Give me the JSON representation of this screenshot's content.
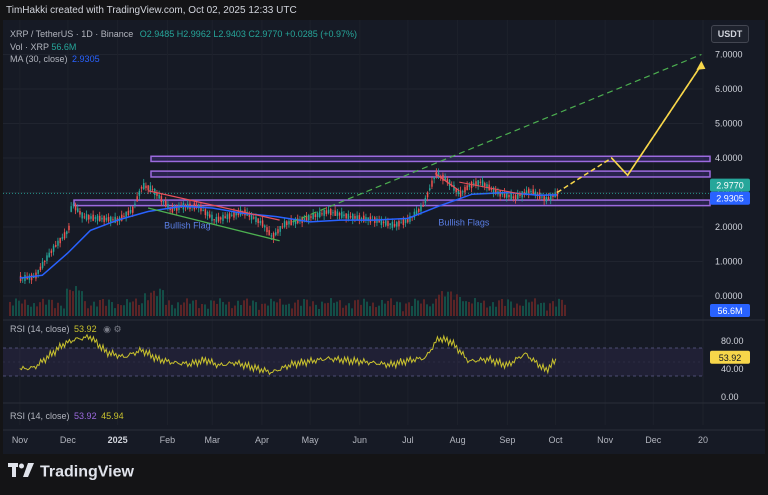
{
  "header": {
    "text": "TimHakki created with TradingView.com, Oct 02, 2025 12:33 UTC"
  },
  "legend": {
    "symbol": "XRP / TetherUS · 1D · Binance",
    "open": "O2.9485",
    "high": "H2.9962",
    "low": "L2.9403",
    "close": "C2.9770",
    "change": "+0.0285 (+0.97%)",
    "vol_label": "Vol · XRP",
    "vol_value": "56.6M",
    "ma_label": "MA (30, close)",
    "ma_value": "2.9305"
  },
  "currency_button": "USDT",
  "rsi_legend_top": {
    "label": "RSI (14, close)",
    "value": "53.92"
  },
  "rsi_legend_bottom": {
    "label": "RSI (14, close)",
    "value1": "53.92",
    "value2": "45.94"
  },
  "badges": {
    "price": "2.9770",
    "ma": "2.9305",
    "volume": "56.6M",
    "rsi": "53.92"
  },
  "annotations": {
    "bullish_flag": "Bullish Flag",
    "bullish_flags": "Bullish Flags"
  },
  "footer": {
    "brand": "TradingView"
  },
  "colors": {
    "background": "#161a25",
    "up": "#26a69a",
    "down": "#ef5350",
    "ma": "#2962ff",
    "rsi": "#c9c22e",
    "rsi_band": "#7e57c2",
    "zone": "#9c6ade",
    "projection": "#f7d64a",
    "trend": "#4caf50"
  },
  "chart_data": [
    {
      "type": "line",
      "title": "XRP / TetherUS · 1D · Binance",
      "x_tick_labels": [
        "Nov",
        "Dec",
        "2025",
        "Feb",
        "Mar",
        "Apr",
        "May",
        "Jun",
        "Jul",
        "Aug",
        "Sep",
        "Oct",
        "Nov",
        "Dec",
        "20"
      ],
      "y_tick_labels": [
        "7.0000",
        "6.0000",
        "5.0000",
        "4.0000",
        "3.0000",
        "2.0000",
        "1.0000",
        "0.0000"
      ],
      "ylim": [
        -0.3,
        7.2
      ],
      "series": [
        {
          "name": "XRP / TetherUS",
          "x": [
            "2024-11-01",
            "2024-11-10",
            "2024-11-16",
            "2024-11-22",
            "2024-12-01",
            "2024-12-03",
            "2024-12-10",
            "2024-12-20",
            "2025-01-01",
            "2025-01-10",
            "2025-01-16",
            "2025-01-22",
            "2025-02-03",
            "2025-02-10",
            "2025-02-20",
            "2025-03-02",
            "2025-03-10",
            "2025-03-20",
            "2025-04-01",
            "2025-04-07",
            "2025-04-15",
            "2025-04-25",
            "2025-05-12",
            "2025-05-25",
            "2025-06-10",
            "2025-06-22",
            "2025-07-01",
            "2025-07-10",
            "2025-07-18",
            "2025-07-25",
            "2025-08-02",
            "2025-08-08",
            "2025-08-15",
            "2025-08-25",
            "2025-09-05",
            "2025-09-15",
            "2025-09-25",
            "2025-10-02"
          ],
          "values": [
            0.51,
            0.55,
            1.0,
            1.4,
            1.9,
            2.7,
            2.3,
            2.25,
            2.2,
            2.5,
            3.2,
            3.1,
            2.5,
            2.6,
            2.6,
            2.2,
            2.3,
            2.45,
            2.1,
            1.7,
            2.1,
            2.2,
            2.45,
            2.3,
            2.2,
            2.05,
            2.2,
            2.6,
            3.55,
            3.35,
            2.95,
            3.2,
            3.3,
            3.0,
            2.85,
            3.05,
            2.8,
            2.97
          ]
        },
        {
          "name": "MA (30, close)",
          "x": [
            "2024-11-01",
            "2024-11-15",
            "2024-12-01",
            "2024-12-15",
            "2025-01-01",
            "2025-01-20",
            "2025-02-10",
            "2025-03-01",
            "2025-03-20",
            "2025-04-10",
            "2025-05-01",
            "2025-05-20",
            "2025-06-10",
            "2025-07-01",
            "2025-07-20",
            "2025-08-10",
            "2025-09-01",
            "2025-09-20",
            "2025-10-02"
          ],
          "values": [
            0.52,
            0.6,
            1.25,
            1.9,
            2.2,
            2.45,
            2.6,
            2.55,
            2.4,
            2.3,
            2.15,
            2.2,
            2.2,
            2.25,
            2.6,
            2.95,
            3.0,
            2.92,
            2.93
          ]
        }
      ],
      "zones": [
        [
          3.9,
          4.05
        ],
        [
          3.45,
          3.62
        ],
        [
          2.62,
          2.78
        ]
      ],
      "projection": {
        "x": [
          "2025-10-02",
          "2025-11-05",
          "2025-11-15",
          "2025-12-31"
        ],
        "values": [
          3.0,
          4.0,
          3.5,
          6.7
        ]
      }
    },
    {
      "type": "bar",
      "title": "Vol · XRP",
      "current_value": "56.6M"
    },
    {
      "type": "line",
      "title": "RSI (14, close)",
      "y_tick_labels": [
        "80.00",
        "40.00",
        "0.00"
      ],
      "ylim": [
        0,
        100
      ],
      "band": [
        30,
        70
      ],
      "series": [
        {
          "name": "RSI (14, close)",
          "x": [
            "2024-11-01",
            "2024-11-10",
            "2024-11-20",
            "2024-11-28",
            "2024-12-05",
            "2024-12-15",
            "2024-12-25",
            "2025-01-05",
            "2025-01-16",
            "2025-01-26",
            "2025-02-05",
            "2025-02-15",
            "2025-02-25",
            "2025-03-05",
            "2025-03-15",
            "2025-03-25",
            "2025-04-07",
            "2025-04-20",
            "2025-05-01",
            "2025-05-12",
            "2025-05-25",
            "2025-06-05",
            "2025-06-20",
            "2025-07-01",
            "2025-07-12",
            "2025-07-20",
            "2025-07-28",
            "2025-08-08",
            "2025-08-20",
            "2025-09-01",
            "2025-09-12",
            "2025-09-25",
            "2025-10-02"
          ],
          "values": [
            40,
            42,
            60,
            75,
            82,
            86,
            64,
            57,
            67,
            54,
            49,
            47,
            53,
            45,
            49,
            43,
            35,
            47,
            51,
            55,
            52,
            50,
            46,
            52,
            56,
            84,
            79,
            51,
            54,
            45,
            62,
            38,
            54
          ]
        }
      ]
    }
  ]
}
